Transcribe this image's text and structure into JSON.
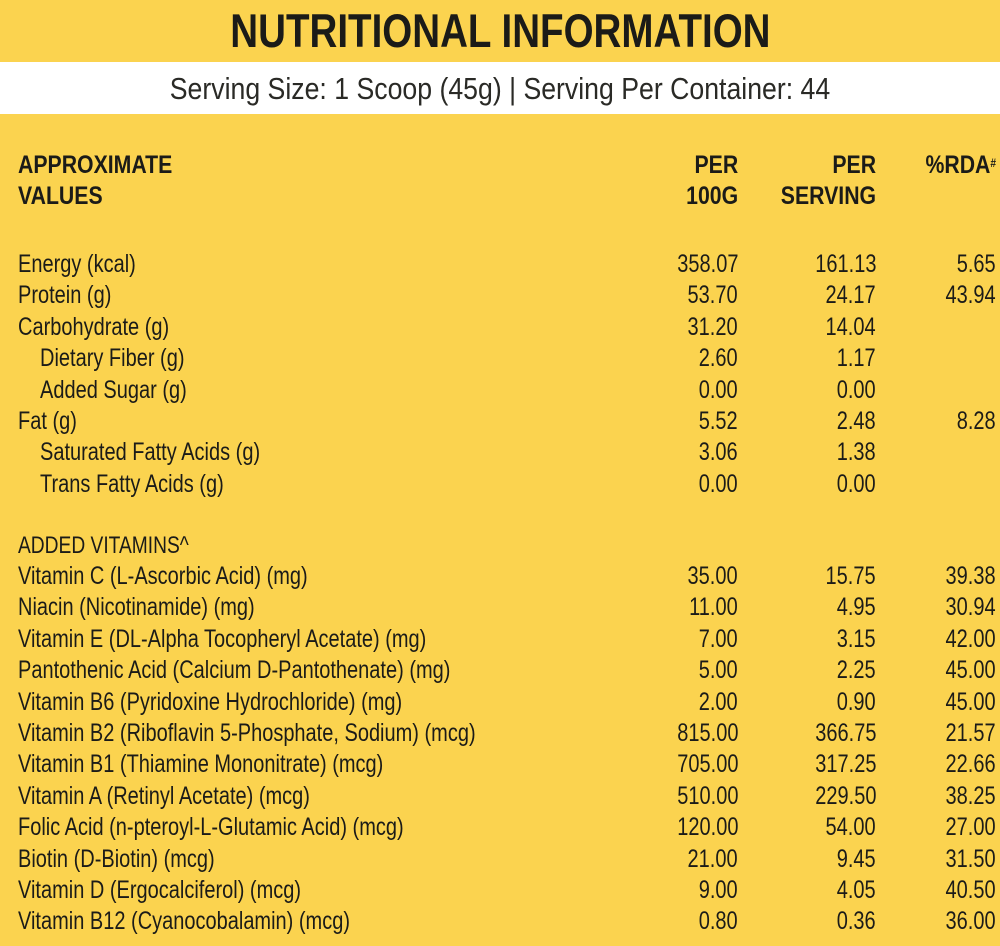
{
  "title": "NUTRITIONAL INFORMATION",
  "serving_info": "Serving Size: 1 Scoop (45g) | Serving Per Container: 44",
  "headers": {
    "name_line1": "APPROXIMATE",
    "name_line2": "VALUES",
    "per100_line1": "PER",
    "per100_line2": "100G",
    "perserving_line1": "PER",
    "perserving_line2": "SERVING",
    "rda": "%RDA",
    "rda_mark": "#"
  },
  "nutrients": [
    {
      "name": "Energy (kcal)",
      "per100": "358.07",
      "perserving": "161.13",
      "rda": "5.65",
      "indent": false
    },
    {
      "name": "Protein (g)",
      "per100": "53.70",
      "perserving": "24.17",
      "rda": "43.94",
      "indent": false
    },
    {
      "name": "Carbohydrate (g)",
      "per100": "31.20",
      "perserving": "14.04",
      "rda": "",
      "indent": false
    },
    {
      "name": "Dietary Fiber (g)",
      "per100": "2.60",
      "perserving": "1.17",
      "rda": "",
      "indent": true
    },
    {
      "name": "Added Sugar (g)",
      "per100": "0.00",
      "perserving": "0.00",
      "rda": "",
      "indent": true
    },
    {
      "name": "Fat (g)",
      "per100": "5.52",
      "perserving": "2.48",
      "rda": "8.28",
      "indent": false
    },
    {
      "name": "Saturated Fatty Acids (g)",
      "per100": "3.06",
      "perserving": "1.38",
      "rda": "",
      "indent": true
    },
    {
      "name": "Trans Fatty Acids (g)",
      "per100": "0.00",
      "perserving": "0.00",
      "rda": "",
      "indent": true
    }
  ],
  "vitamins_label": "ADDED VITAMINS^",
  "vitamins": [
    {
      "name": "Vitamin C (L-Ascorbic Acid) (mg)",
      "per100": "35.00",
      "perserving": "15.75",
      "rda": "39.38"
    },
    {
      "name": "Niacin (Nicotinamide) (mg)",
      "per100": "11.00",
      "perserving": "4.95",
      "rda": "30.94"
    },
    {
      "name": "Vitamin E (DL-Alpha Tocopheryl Acetate) (mg)",
      "per100": "7.00",
      "perserving": "3.15",
      "rda": "42.00"
    },
    {
      "name": "Pantothenic Acid (Calcium D-Pantothenate) (mg)",
      "per100": "5.00",
      "perserving": "2.25",
      "rda": "45.00"
    },
    {
      "name": "Vitamin B6 (Pyridoxine Hydrochloride) (mg)",
      "per100": "2.00",
      "perserving": "0.90",
      "rda": "45.00"
    },
    {
      "name": "Vitamin B2 (Riboflavin 5-Phosphate, Sodium) (mcg)",
      "per100": "815.00",
      "perserving": "366.75",
      "rda": "21.57"
    },
    {
      "name": "Vitamin B1 (Thiamine Mononitrate) (mcg)",
      "per100": "705.00",
      "perserving": "317.25",
      "rda": "22.66"
    },
    {
      "name": "Vitamin A (Retinyl Acetate) (mcg)",
      "per100": "510.00",
      "perserving": "229.50",
      "rda": "38.25"
    },
    {
      "name": "Folic Acid (n-pteroyl-L-Glutamic Acid) (mcg)",
      "per100": "120.00",
      "perserving": "54.00",
      "rda": "27.00"
    },
    {
      "name": "Biotin (D-Biotin) (mcg)",
      "per100": "21.00",
      "perserving": "9.45",
      "rda": "31.50"
    },
    {
      "name": "Vitamin D (Ergocalciferol) (mcg)",
      "per100": "9.00",
      "perserving": "4.05",
      "rda": "40.50"
    },
    {
      "name": "Vitamin B12 (Cyanocobalamin) (mcg)",
      "per100": "0.80",
      "perserving": "0.36",
      "rda": "36.00"
    }
  ]
}
